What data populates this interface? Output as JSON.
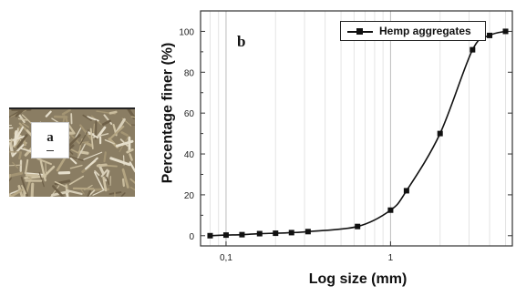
{
  "figure": {
    "panel_a_label": "a",
    "panel_b_label": "b",
    "photo_description_icon": "hemp-aggregates-photo"
  },
  "chart_data": {
    "type": "line",
    "xlabel": "Log size (mm)",
    "ylabel": "Percentage finer (%)",
    "x_scale": "log",
    "xlim": [
      0.07,
      5.5
    ],
    "ylim": [
      -5,
      110
    ],
    "x_ticks": [
      0.1,
      1
    ],
    "x_tick_labels": [
      "0,1",
      "1"
    ],
    "y_ticks": [
      0,
      20,
      40,
      60,
      80,
      100
    ],
    "y_tick_labels": [
      "0",
      "20",
      "40",
      "60",
      "80",
      "100"
    ],
    "grid": "vertical",
    "legend_position": "top-right",
    "series": [
      {
        "name": "Hemp aggregates",
        "color": "#111111",
        "marker": "square",
        "x": [
          0.08,
          0.1,
          0.125,
          0.16,
          0.2,
          0.25,
          0.315,
          0.63,
          1.0,
          1.25,
          2.0,
          3.15,
          4.0,
          5.0
        ],
        "y": [
          0,
          0.3,
          0.5,
          1,
          1.2,
          1.5,
          2,
          4.5,
          12.5,
          22,
          50,
          91,
          98,
          100
        ]
      }
    ]
  }
}
